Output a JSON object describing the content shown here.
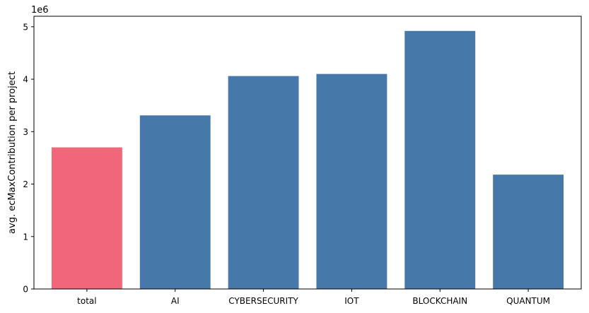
{
  "chart_data": {
    "type": "bar",
    "categories": [
      "total",
      "AI",
      "CYBERSECURITY",
      "IOT",
      "BLOCKCHAIN",
      "QUANTUM"
    ],
    "values": [
      2700000,
      3310000,
      4060000,
      4100000,
      4920000,
      2180000
    ],
    "bar_colors": [
      "#f0677a",
      "#4678aa",
      "#4678aa",
      "#4678aa",
      "#4678aa",
      "#4678aa"
    ],
    "title": "",
    "xlabel": "",
    "ylabel": "avg. ecMaxContribution per project",
    "ylim": [
      0,
      5200000
    ],
    "yticks": [
      0,
      1000000,
      2000000,
      3000000,
      4000000,
      5000000
    ],
    "ytick_labels": [
      "0",
      "1",
      "2",
      "3",
      "4",
      "5"
    ],
    "offset_label": "1e6",
    "grid": false,
    "legend": "none"
  }
}
